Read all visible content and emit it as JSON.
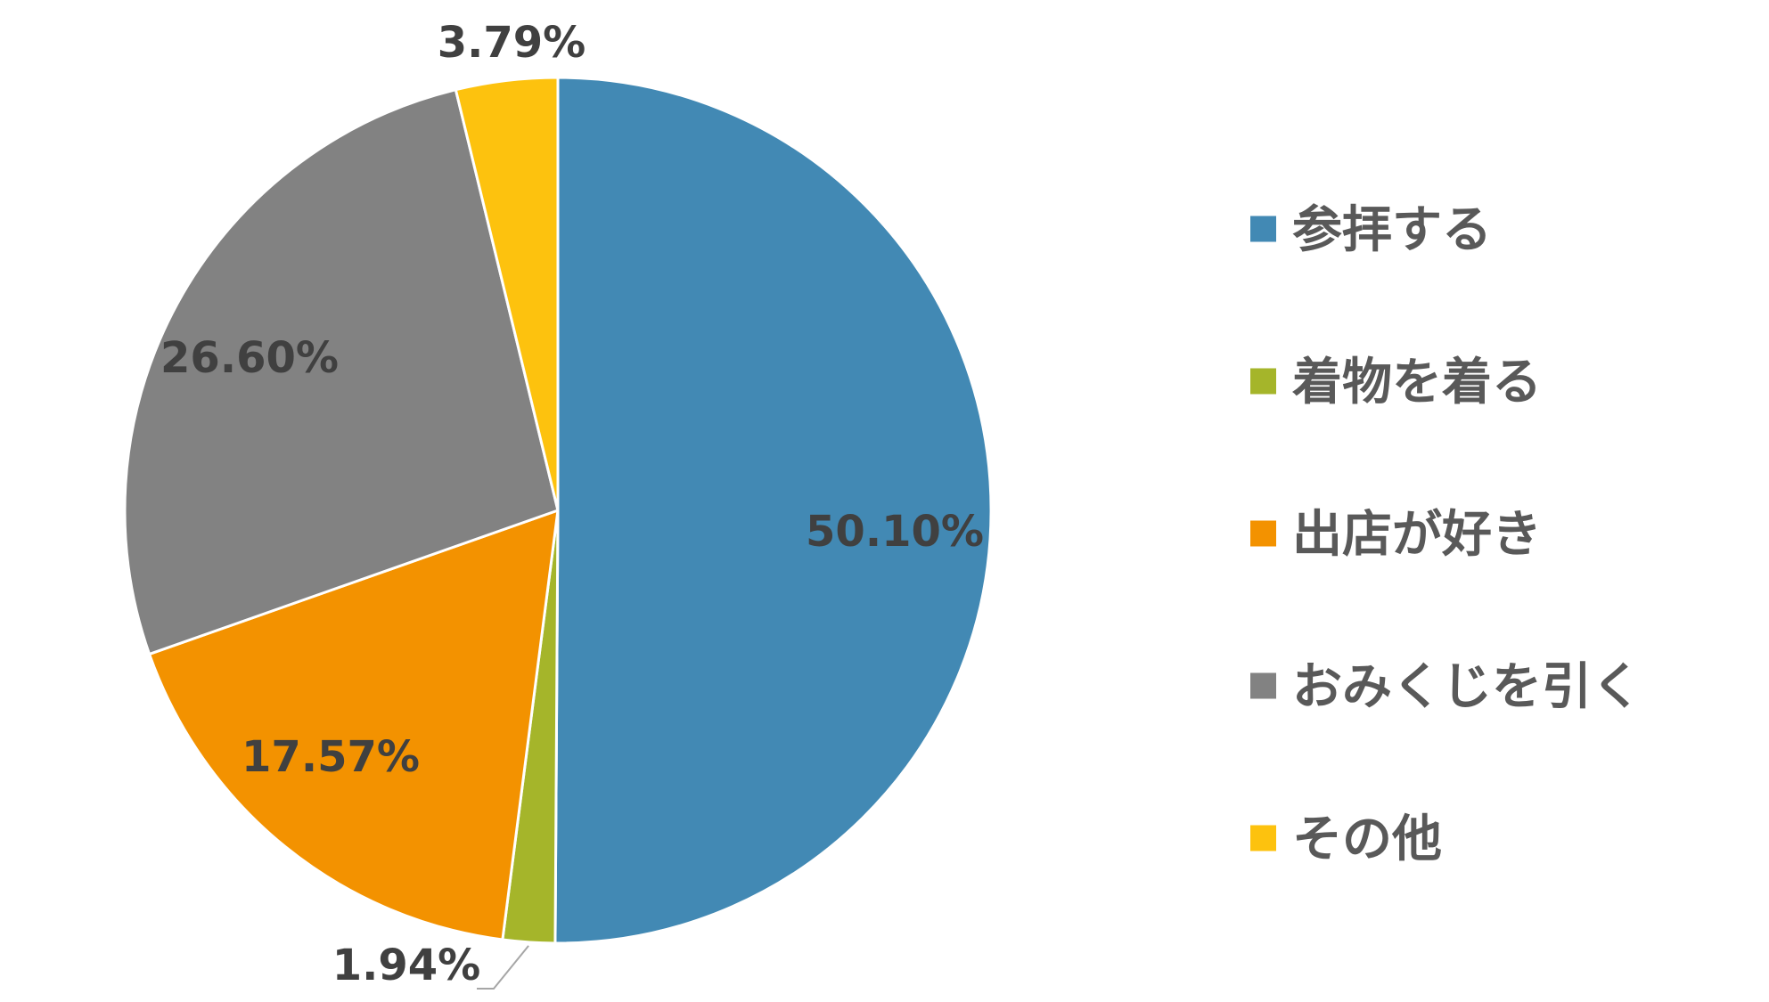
{
  "chart_data": {
    "type": "pie",
    "title": "",
    "start_angle": "12 o'clock",
    "direction": "clockwise",
    "slices": [
      {
        "label": "参拝する",
        "value": 50.1,
        "value_label": "50.10%",
        "color": "#4289B4"
      },
      {
        "label": "着物を着る",
        "value": 1.94,
        "value_label": "1.94%",
        "color": "#A5B52A"
      },
      {
        "label": "出店が好き",
        "value": 17.57,
        "value_label": "17.57%",
        "color": "#F39200"
      },
      {
        "label": "おみくじを引く",
        "value": 26.6,
        "value_label": "26.60%",
        "color": "#828282"
      },
      {
        "label": "その他",
        "value": 3.79,
        "value_label": "3.79%",
        "color": "#FDC20E"
      }
    ],
    "legend_position": "right"
  }
}
